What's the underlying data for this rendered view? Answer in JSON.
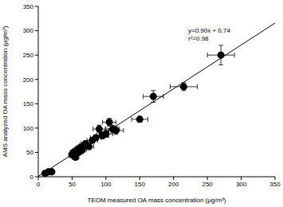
{
  "chart_data": {
    "type": "scatter",
    "x_label": "TEOM measured OA mass concentration (μg/m³)",
    "y_label": "AMS analyzed OA mass concentration (μg/m³)",
    "x": [
      10,
      15,
      20,
      50,
      52,
      55,
      57,
      60,
      62,
      65,
      68,
      70,
      75,
      80,
      85,
      90,
      95,
      100,
      105,
      110,
      115,
      150,
      170,
      215,
      270
    ],
    "values": [
      7,
      10,
      10,
      45,
      50,
      40,
      55,
      50,
      60,
      55,
      65,
      68,
      62,
      75,
      80,
      98,
      85,
      88,
      112,
      98,
      95,
      118,
      165,
      185,
      250
    ],
    "x_error": [
      3,
      3,
      3,
      5,
      5,
      5,
      6,
      6,
      6,
      6,
      7,
      7,
      7,
      8,
      8,
      9,
      9,
      10,
      10,
      10,
      11,
      12,
      15,
      20,
      20
    ],
    "y_error": [
      3,
      3,
      3,
      5,
      5,
      5,
      5,
      5,
      5,
      5,
      6,
      6,
      6,
      6,
      6,
      8,
      7,
      7,
      8,
      8,
      8,
      6,
      12,
      8,
      20
    ],
    "color": "#000000",
    "marker": "circle",
    "fit_line": {
      "x": [
        0,
        350
      ],
      "values": [
        0.74,
        315.74
      ],
      "color": "#000000"
    },
    "annotations": [
      "y=0.90x + 0.74",
      "r²=0.98"
    ],
    "xlim": [
      0,
      350
    ],
    "ylim": [
      0,
      350
    ],
    "xticks": [
      0,
      50,
      100,
      150,
      200,
      250,
      300,
      350
    ],
    "yticks": [
      0,
      50,
      100,
      150,
      200,
      250,
      300,
      350
    ],
    "grid": false
  }
}
